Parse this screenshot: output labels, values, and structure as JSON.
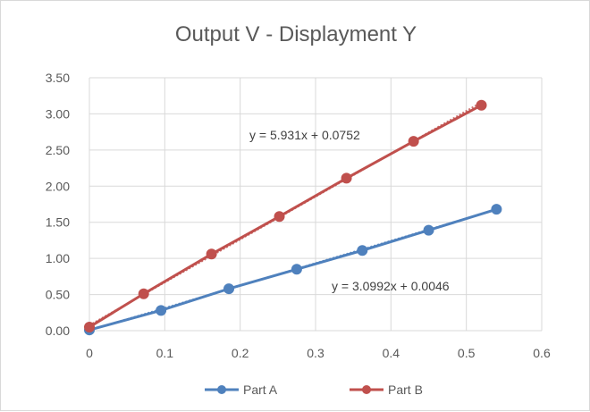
{
  "chart_data": {
    "type": "scatter",
    "title": "Output V - Displayment Y",
    "xlabel": "",
    "ylabel": "",
    "xlim": [
      0,
      0.6
    ],
    "ylim": [
      0,
      3.5
    ],
    "x_ticks": [
      "0",
      "0.1",
      "0.2",
      "0.3",
      "0.4",
      "0.5",
      "0.6"
    ],
    "y_ticks": [
      "0.00",
      "0.50",
      "1.00",
      "1.50",
      "2.00",
      "2.50",
      "3.00",
      "3.50"
    ],
    "grid": true,
    "legend_position": "bottom",
    "series": [
      {
        "name": "Part A",
        "color": "#4f81bd",
        "x": [
          0,
          0.095,
          0.185,
          0.275,
          0.362,
          0.45,
          0.54
        ],
        "y": [
          0.01,
          0.28,
          0.58,
          0.85,
          1.11,
          1.39,
          1.68
        ],
        "trendline": {
          "slope": 3.0992,
          "intercept": 0.0046,
          "equation": "y = 3.0992x + 0.0046"
        }
      },
      {
        "name": "Part B",
        "color": "#c0504d",
        "x": [
          0,
          0.072,
          0.162,
          0.252,
          0.341,
          0.43,
          0.52
        ],
        "y": [
          0.05,
          0.51,
          1.06,
          1.58,
          2.11,
          2.62,
          3.12
        ],
        "trendline": {
          "slope": 5.931,
          "intercept": 0.0752,
          "equation": "y = 5.931x + 0.0752"
        }
      }
    ]
  }
}
